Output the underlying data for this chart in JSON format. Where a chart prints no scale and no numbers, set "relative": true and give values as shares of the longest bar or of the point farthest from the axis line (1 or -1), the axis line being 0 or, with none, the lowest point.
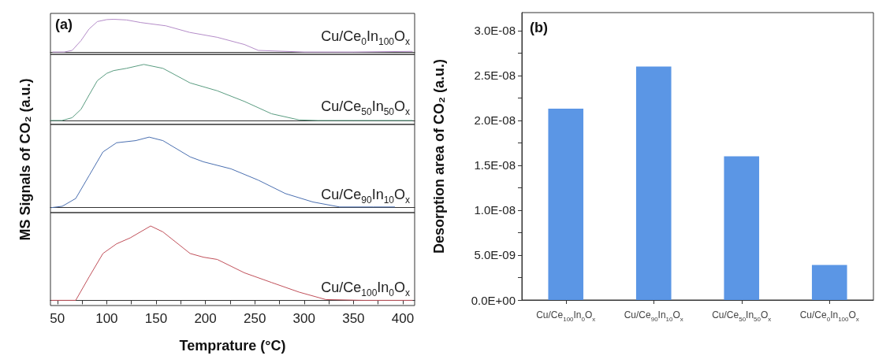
{
  "chart_data": [
    {
      "type": "line",
      "title": "(a)",
      "ylabel": "MS Signals of CO₂ (a.u.)",
      "relative": true,
      "marker": "none",
      "tick_labels": false,
      "xlim": [
        43,
        412
      ],
      "series": [
        {
          "name": "Cu/Ce$_{0}$In$_{100}$O$_{x}$",
          "color": "#b48cc8",
          "x": [
            45,
            57,
            65,
            74,
            82,
            90.5,
            100,
            107,
            120,
            134.6,
            160,
            184,
            212,
            239.5,
            253.6,
            300,
            350,
            410
          ],
          "values": [
            0,
            0,
            0.05,
            0.35,
            0.7,
            0.93,
            0.99,
            1,
            0.98,
            0.9,
            0.8,
            0.6,
            0.45,
            0.23,
            0.05,
            0,
            0,
            0.02
          ]
        }
      ]
    },
    {
      "type": "line",
      "relative": true,
      "marker": "none",
      "tick_labels": false,
      "xlim": [
        43,
        412
      ],
      "series": [
        {
          "name": "Cu/Ce$_{50}$In$_{50}$O$_{x}$",
          "color": "#5a9c80",
          "x": [
            43,
            54.7,
            65,
            74,
            82,
            90.5,
            100,
            107,
            120,
            137.6,
            157,
            184.5,
            212,
            239.5,
            267,
            295,
            314,
            350,
            410
          ],
          "values": [
            0,
            0,
            0.05,
            0.2,
            0.45,
            0.71,
            0.84,
            0.89,
            0.93,
            1,
            0.93,
            0.67,
            0.53,
            0.34,
            0.12,
            0.01,
            0,
            0,
            0
          ]
        }
      ]
    },
    {
      "type": "line",
      "relative": true,
      "marker": "none",
      "tick_labels": false,
      "xlim": [
        43,
        412
      ],
      "series": [
        {
          "name": "Cu/Ce$_{90}$In$_{10}$O$_{x}$",
          "color": "#4a6fb0",
          "x": [
            43.7,
            55,
            68.6,
            82.4,
            96.2,
            110,
            129.3,
            143,
            157,
            184.5,
            198,
            226,
            253.6,
            281,
            309,
            336,
            370,
            392
          ],
          "values": [
            0,
            0.02,
            0.13,
            0.46,
            0.79,
            0.92,
            0.95,
            1,
            0.95,
            0.72,
            0.65,
            0.55,
            0.39,
            0.2,
            0.08,
            0.01,
            0.01,
            0.01
          ]
        }
      ]
    },
    {
      "type": "line",
      "relative": true,
      "marker": "none",
      "tick_labels": "x",
      "xlabel": "Temprature (°C)",
      "xlim": [
        43,
        412
      ],
      "xticks": [
        50,
        {
          "value": 75,
          "label": null
        },
        100,
        {
          "value": 125,
          "label": null
        },
        150,
        {
          "value": 175,
          "label": null
        },
        200,
        {
          "value": 225,
          "label": null
        },
        250,
        {
          "value": 275,
          "label": null
        },
        300,
        {
          "value": 325,
          "label": null
        },
        350,
        {
          "value": 375,
          "label": null
        },
        400
      ],
      "series": [
        {
          "name": "Cu/Ce$_{100}$In$_{0}$O$_{x}$",
          "color": "#c0505a",
          "x": [
            43.7,
            68.6,
            82.4,
            96.2,
            110,
            123.8,
            144.5,
            157,
            184.5,
            198,
            212,
            239.5,
            267,
            295,
            322,
            360,
            410
          ],
          "values": [
            0,
            0,
            0.32,
            0.63,
            0.76,
            0.84,
            1,
            0.92,
            0.63,
            0.58,
            0.55,
            0.37,
            0.24,
            0.11,
            0.01,
            0,
            0
          ]
        }
      ]
    },
    {
      "type": "bar",
      "title": "(b)",
      "ylabel": "Desorption area of CO₂ (a.u.)",
      "categories": [
        "Cu/Ce$_{100}$In$_{0}$O$_{x}$",
        "Cu/Ce$_{90}$In$_{10}$O$_{x}$",
        "Cu/Ce$_{50}$In$_{50}$O$_{x}$",
        "Cu/Ce$_{0}$In$_{100}$O$_{x}$"
      ],
      "values": [
        2.13e-08,
        2.6e-08,
        1.6e-08,
        3.9e-09
      ],
      "color": "#5b96e5",
      "ylim": [
        0,
        3.2e-08
      ],
      "yticks": [
        {
          "value": 0,
          "label": "0.0E+00"
        },
        {
          "value": 2.5e-09,
          "label": null
        },
        {
          "value": 5e-09,
          "label": "5.0E-09"
        },
        {
          "value": 7.5e-09,
          "label": null
        },
        {
          "value": 1e-08,
          "label": "1.0E-08"
        },
        {
          "value": 1.25e-08,
          "label": null
        },
        {
          "value": 1.5e-08,
          "label": "1.5E-08"
        },
        {
          "value": 1.75e-08,
          "label": null
        },
        {
          "value": 2e-08,
          "label": "2.0E-08"
        },
        {
          "value": 2.25e-08,
          "label": null
        },
        {
          "value": 2.5e-08,
          "label": "2.5E-08"
        },
        {
          "value": 2.75e-08,
          "label": null
        },
        {
          "value": 3e-08,
          "label": "3.0E-08"
        }
      ]
    }
  ]
}
